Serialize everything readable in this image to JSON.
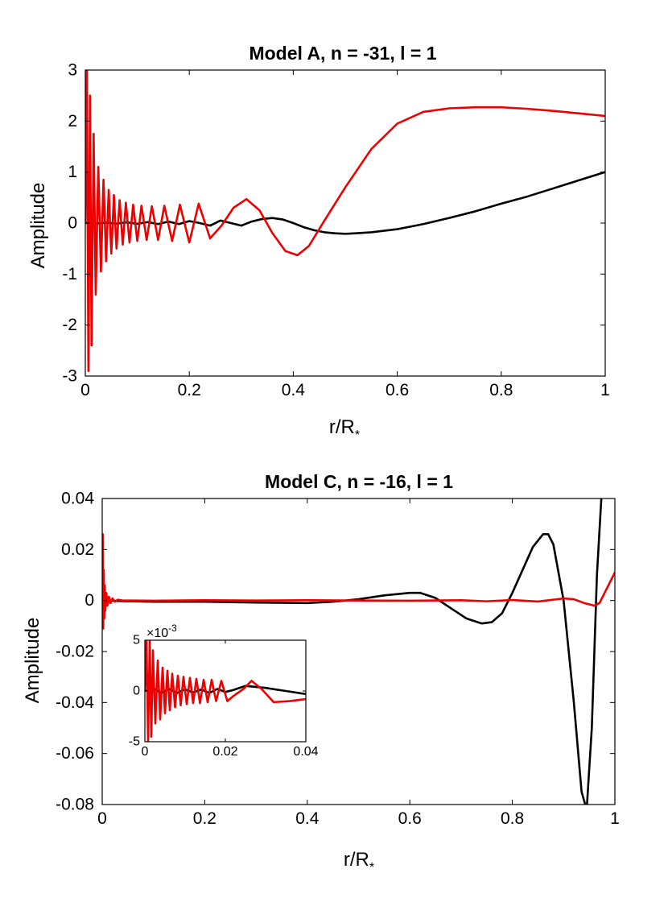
{
  "chart_data": [
    {
      "id": "panelA",
      "type": "line",
      "title": "Model A, n = -31, l = 1",
      "xlabel": "r/R",
      "xlabel_subscript": "*",
      "ylabel": "Amplitude",
      "xlim": [
        0,
        1
      ],
      "ylim": [
        -3,
        3
      ],
      "xticks": [
        0,
        0.2,
        0.4,
        0.6,
        0.8,
        1
      ],
      "xtick_labels": [
        "0",
        "0.2",
        "0.4",
        "0.6",
        "0.8",
        "1"
      ],
      "yticks": [
        -3,
        -2,
        -1,
        0,
        1,
        2,
        3
      ],
      "ytick_labels": [
        "-3",
        "-2",
        "-1",
        "0",
        "1",
        "2",
        "3"
      ],
      "series": [
        {
          "name": "black",
          "color": "#000000",
          "x": [
            0,
            0.01,
            0.02,
            0.04,
            0.06,
            0.08,
            0.1,
            0.12,
            0.14,
            0.16,
            0.18,
            0.2,
            0.22,
            0.24,
            0.26,
            0.28,
            0.3,
            0.32,
            0.34,
            0.36,
            0.38,
            0.4,
            0.42,
            0.44,
            0.46,
            0.48,
            0.5,
            0.52,
            0.55,
            0.6,
            0.65,
            0.7,
            0.75,
            0.8,
            0.85,
            0.9,
            0.95,
            1.0
          ],
          "values": [
            0,
            0.01,
            -0.01,
            0.01,
            -0.01,
            0.015,
            -0.015,
            0.02,
            -0.02,
            0.03,
            -0.02,
            0.04,
            0.0,
            -0.05,
            0.05,
            0.0,
            -0.05,
            0.03,
            0.08,
            0.1,
            0.07,
            0.0,
            -0.08,
            -0.14,
            -0.18,
            -0.2,
            -0.21,
            -0.2,
            -0.18,
            -0.12,
            -0.02,
            0.1,
            0.23,
            0.38,
            0.52,
            0.68,
            0.84,
            1.0
          ]
        },
        {
          "name": "red",
          "color": "#ee0000",
          "x": [
            0,
            0.003,
            0.006,
            0.009,
            0.012,
            0.016,
            0.02,
            0.025,
            0.03,
            0.035,
            0.04,
            0.045,
            0.05,
            0.055,
            0.06,
            0.066,
            0.072,
            0.078,
            0.085,
            0.092,
            0.1,
            0.108,
            0.118,
            0.128,
            0.14,
            0.152,
            0.167,
            0.182,
            0.2,
            0.218,
            0.24,
            0.262,
            0.285,
            0.31,
            0.335,
            0.36,
            0.385,
            0.408,
            0.43,
            0.46,
            0.5,
            0.55,
            0.6,
            0.65,
            0.7,
            0.75,
            0.8,
            0.85,
            0.9,
            0.95,
            1.0
          ],
          "values": [
            0,
            3.0,
            -2.9,
            2.5,
            -2.4,
            1.75,
            -1.4,
            1.1,
            -0.95,
            0.85,
            -0.75,
            0.65,
            -0.6,
            0.55,
            -0.5,
            0.45,
            -0.42,
            0.4,
            -0.38,
            0.36,
            -0.35,
            0.34,
            -0.33,
            0.33,
            -0.33,
            0.34,
            -0.35,
            0.36,
            -0.38,
            0.38,
            -0.3,
            -0.05,
            0.3,
            0.47,
            0.25,
            -0.2,
            -0.55,
            -0.63,
            -0.45,
            0.05,
            0.7,
            1.45,
            1.95,
            2.18,
            2.25,
            2.27,
            2.27,
            2.24,
            2.2,
            2.15,
            2.1
          ]
        }
      ]
    },
    {
      "id": "panelC",
      "type": "line",
      "title": "Model C, n = -16, l = 1",
      "xlabel": "r/R",
      "xlabel_subscript": "*",
      "ylabel": "Amplitude",
      "xlim": [
        0,
        1
      ],
      "ylim": [
        -0.08,
        0.04
      ],
      "xticks": [
        0,
        0.2,
        0.4,
        0.6,
        0.8,
        1
      ],
      "xtick_labels": [
        "0",
        "0.2",
        "0.4",
        "0.6",
        "0.8",
        "1"
      ],
      "yticks": [
        -0.08,
        -0.06,
        -0.04,
        -0.02,
        0,
        0.02,
        0.04
      ],
      "ytick_labels": [
        "-0.08",
        "-0.06",
        "-0.04",
        "-0.02",
        "0",
        "0.02",
        "0.04"
      ],
      "series": [
        {
          "name": "black",
          "color": "#000000",
          "x": [
            0,
            0.05,
            0.1,
            0.2,
            0.3,
            0.4,
            0.45,
            0.5,
            0.55,
            0.6,
            0.62,
            0.65,
            0.68,
            0.71,
            0.74,
            0.76,
            0.78,
            0.8,
            0.82,
            0.84,
            0.86,
            0.87,
            0.88,
            0.9,
            0.92,
            0.935,
            0.945,
            0.955,
            0.965,
            0.975
          ],
          "values": [
            0,
            -0.0003,
            -0.0005,
            -0.0005,
            -0.0008,
            -0.001,
            -0.0005,
            0.0005,
            0.002,
            0.003,
            0.003,
            0.001,
            -0.003,
            -0.007,
            -0.009,
            -0.0085,
            -0.005,
            0.003,
            0.012,
            0.021,
            0.026,
            0.026,
            0.022,
            0.0,
            -0.04,
            -0.075,
            -0.082,
            -0.05,
            0.01,
            0.045
          ]
        },
        {
          "name": "red",
          "color": "#ee0000",
          "x": [
            0,
            0.001,
            0.002,
            0.003,
            0.004,
            0.005,
            0.006,
            0.008,
            0.01,
            0.013,
            0.016,
            0.02,
            0.025,
            0.03,
            0.04,
            0.06,
            0.1,
            0.2,
            0.3,
            0.4,
            0.5,
            0.6,
            0.7,
            0.75,
            0.8,
            0.85,
            0.9,
            0.92,
            0.94,
            0.96,
            0.97,
            0.98,
            0.99,
            1.0
          ],
          "values": [
            0,
            0.026,
            -0.011,
            0.012,
            -0.007,
            0.006,
            -0.004,
            0.003,
            -0.002,
            0.0015,
            -0.001,
            0.0008,
            -0.0005,
            0.0003,
            0.0,
            0.0,
            -0.0001,
            0.0001,
            0.0,
            0.0001,
            0.0,
            -0.0001,
            0.0001,
            -0.0003,
            0.0002,
            -0.0004,
            0.0008,
            0.0005,
            -0.001,
            -0.002,
            -0.001,
            0.003,
            0.007,
            0.011
          ]
        }
      ]
    },
    {
      "id": "insetC",
      "type": "line",
      "title": "",
      "xlim": [
        0,
        0.04
      ],
      "ylim": [
        -5,
        5
      ],
      "scale_label": "×10",
      "scale_exponent": "-3",
      "xticks": [
        0,
        0.02,
        0.04
      ],
      "xtick_labels": [
        "0",
        "0.02",
        "0.04"
      ],
      "yticks": [
        -5,
        0,
        5
      ],
      "ytick_labels": [
        "-5",
        "0",
        "5"
      ],
      "series": [
        {
          "name": "black",
          "color": "#000000",
          "x": [
            0,
            0.002,
            0.004,
            0.006,
            0.008,
            0.01,
            0.012,
            0.014,
            0.016,
            0.018,
            0.02,
            0.022,
            0.025,
            0.03,
            0.035,
            0.04
          ],
          "values": [
            0,
            0.3,
            -0.2,
            0.2,
            -0.2,
            0.15,
            -0.15,
            0.15,
            -0.2,
            0.2,
            -0.1,
            0.1,
            0.5,
            0.3,
            0.0,
            -0.3
          ]
        },
        {
          "name": "red",
          "color": "#ee0000",
          "x": [
            0,
            0.0004,
            0.0008,
            0.0012,
            0.0016,
            0.002,
            0.0026,
            0.0032,
            0.0038,
            0.0044,
            0.005,
            0.0056,
            0.0062,
            0.0068,
            0.0075,
            0.0082,
            0.0089,
            0.0096,
            0.0104,
            0.0112,
            0.012,
            0.0128,
            0.0137,
            0.0146,
            0.0156,
            0.0166,
            0.0177,
            0.019,
            0.0205,
            0.022,
            0.0245,
            0.0265,
            0.029,
            0.032,
            0.036,
            0.04
          ],
          "values": [
            0,
            5.0,
            -5.0,
            5.0,
            -4.5,
            4.0,
            -3.2,
            3.0,
            -2.8,
            2.3,
            -2.2,
            2.0,
            -1.9,
            1.7,
            -1.6,
            1.5,
            -1.4,
            1.4,
            -1.3,
            1.3,
            -1.2,
            1.2,
            -1.2,
            1.1,
            -1.1,
            1.1,
            -1.0,
            1.0,
            -1.0,
            -0.5,
            0.2,
            1.0,
            0.2,
            -1.1,
            -1.0,
            -0.8
          ]
        }
      ]
    }
  ]
}
